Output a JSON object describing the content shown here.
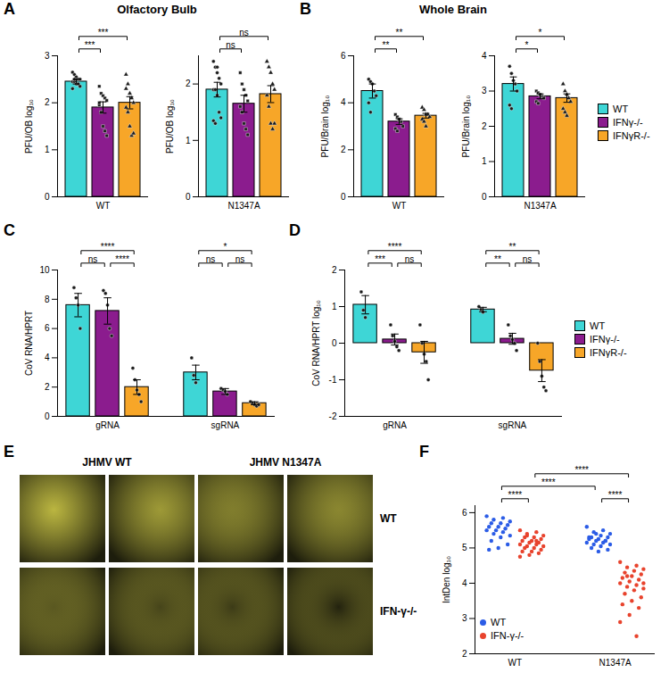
{
  "chart_data": [
    {
      "panel": "A",
      "title": "Olfactory Bulb",
      "type": "bar",
      "ylabel": "PFU/OB log₁₀",
      "ylim": [
        0,
        3
      ],
      "yticks": [
        0,
        1,
        2,
        3
      ],
      "categories": [
        "WT"
      ],
      "series": [
        {
          "name": "WT",
          "color": "#3ed6d6",
          "marker": "circle",
          "values": [
            2.45
          ],
          "errors": [
            0.05
          ],
          "points": [
            [
              2.65,
              2.6,
              2.55,
              2.5,
              2.5,
              2.45,
              2.45,
              2.4,
              2.4,
              2.35,
              2.3,
              2.5
            ]
          ]
        },
        {
          "name": "IFNγ-/-",
          "color": "#8b1c8e",
          "marker": "square",
          "values": [
            1.9
          ],
          "errors": [
            0.12
          ],
          "points": [
            [
              2.35,
              2.2,
              2.15,
              2.1,
              2.05,
              1.95,
              1.8,
              1.5,
              1.4,
              1.3,
              2.0
            ]
          ]
        },
        {
          "name": "IFNγR-/-",
          "color": "#f7a628",
          "marker": "triangle",
          "values": [
            2.0
          ],
          "errors": [
            0.13
          ],
          "points": [
            [
              2.6,
              2.4,
              2.2,
              2.1,
              2.0,
              1.9,
              1.8,
              1.5,
              1.3,
              1.35,
              2.3
            ]
          ]
        }
      ],
      "brackets": [
        {
          "from": [
            "WT",
            "WT"
          ],
          "to": [
            "WT",
            "IFNγ-/-"
          ],
          "label": "***"
        },
        {
          "from": [
            "WT",
            "WT"
          ],
          "to": [
            "WT",
            "IFNγR-/-"
          ],
          "label": "***"
        }
      ]
    },
    {
      "panel": "A",
      "type": "bar",
      "ylabel": "PFU/OB log₁₀",
      "ylim": [
        0,
        2.5
      ],
      "yticks": [
        0,
        1,
        2
      ],
      "categories": [
        "N1347A"
      ],
      "series": [
        {
          "name": "WT",
          "color": "#3ed6d6",
          "marker": "circle",
          "values": [
            1.9
          ],
          "errors": [
            0.13
          ],
          "points": [
            [
              2.4,
              2.3,
              2.2,
              2.1,
              2.0,
              1.9,
              1.9,
              1.8,
              1.5,
              1.4,
              1.35,
              1.3,
              2.3
            ]
          ]
        },
        {
          "name": "IFNγ-/-",
          "color": "#8b1c8e",
          "marker": "square",
          "values": [
            1.65
          ],
          "errors": [
            0.15
          ],
          "points": [
            [
              2.2,
              2.0,
              1.9,
              1.8,
              1.7,
              1.6,
              1.5,
              1.3,
              1.2,
              1.1
            ]
          ]
        },
        {
          "name": "IFNγR-/-",
          "color": "#f7a628",
          "marker": "triangle",
          "values": [
            1.82
          ],
          "errors": [
            0.15
          ],
          "points": [
            [
              2.4,
              2.3,
              2.2,
              2.0,
              1.9,
              1.8,
              1.6,
              1.3,
              1.2,
              1.3
            ]
          ]
        }
      ],
      "brackets": [
        {
          "from": [
            "N1347A",
            "WT"
          ],
          "to": [
            "N1347A",
            "IFNγ-/-"
          ],
          "label": "ns"
        },
        {
          "from": [
            "N1347A",
            "WT"
          ],
          "to": [
            "N1347A",
            "IFNγR-/-"
          ],
          "label": "ns"
        }
      ]
    },
    {
      "panel": "B",
      "title": "Whole Brain",
      "type": "bar",
      "ylabel": "PFU/Brain log₁₀",
      "ylim": [
        0,
        6
      ],
      "yticks": [
        0,
        2,
        4,
        6
      ],
      "categories": [
        "WT"
      ],
      "series": [
        {
          "name": "WT",
          "color": "#3ed6d6",
          "marker": "circle",
          "values": [
            4.5
          ],
          "errors": [
            0.3
          ],
          "points": [
            [
              5.0,
              4.9,
              4.8,
              4.5,
              4.3,
              4.0,
              3.6
            ]
          ]
        },
        {
          "name": "IFNγ-/-",
          "color": "#8b1c8e",
          "marker": "square",
          "values": [
            3.2
          ],
          "errors": [
            0.12
          ],
          "points": [
            [
              3.5,
              3.4,
              3.3,
              3.2,
              3.0,
              2.9,
              2.8,
              3.3
            ]
          ]
        },
        {
          "name": "IFNγR-/-",
          "color": "#f7a628",
          "marker": "triangle",
          "values": [
            3.45
          ],
          "errors": [
            0.1
          ],
          "points": [
            [
              3.8,
              3.7,
              3.5,
              3.5,
              3.4,
              3.3,
              3.2,
              3.0
            ]
          ]
        }
      ],
      "brackets": [
        {
          "from": [
            "WT",
            "WT"
          ],
          "to": [
            "WT",
            "IFNγ-/-"
          ],
          "label": "**"
        },
        {
          "from": [
            "WT",
            "WT"
          ],
          "to": [
            "WT",
            "IFNγR-/-"
          ],
          "label": "**"
        }
      ]
    },
    {
      "panel": "B",
      "type": "bar",
      "ylabel": "PFU/Brain log₁₀",
      "ylim": [
        0,
        4
      ],
      "yticks": [
        0,
        1,
        2,
        3,
        4
      ],
      "legend": "right",
      "categories": [
        "N1347A"
      ],
      "series": [
        {
          "name": "WT",
          "color": "#3ed6d6",
          "marker": "circle",
          "values": [
            3.2
          ],
          "errors": [
            0.2
          ],
          "points": [
            [
              3.7,
              3.5,
              3.3,
              3.2,
              3.0,
              2.6,
              2.5
            ]
          ]
        },
        {
          "name": "IFNγ-/-",
          "color": "#8b1c8e",
          "marker": "square",
          "values": [
            2.85
          ],
          "errors": [
            0.07
          ],
          "points": [
            [
              3.0,
              2.95,
              2.9,
              2.85,
              2.8,
              2.7,
              2.65,
              2.9
            ]
          ]
        },
        {
          "name": "IFNγR-/-",
          "color": "#f7a628",
          "marker": "triangle",
          "values": [
            2.8
          ],
          "errors": [
            0.12
          ],
          "points": [
            [
              3.2,
              3.0,
              2.9,
              2.8,
              2.7,
              2.5,
              2.4,
              2.3
            ]
          ]
        }
      ],
      "brackets": [
        {
          "from": [
            "N1347A",
            "WT"
          ],
          "to": [
            "N1347A",
            "IFNγ-/-"
          ],
          "label": "*"
        },
        {
          "from": [
            "N1347A",
            "WT"
          ],
          "to": [
            "N1347A",
            "IFNγR-/-"
          ],
          "label": "*"
        }
      ]
    },
    {
      "panel": "C",
      "type": "bar",
      "ylabel": "CoV RNA/HPRT",
      "ylim": [
        0,
        10
      ],
      "yticks": [
        0,
        2,
        4,
        6,
        8,
        10
      ],
      "categories": [
        "gRNA",
        "sgRNA"
      ],
      "series": [
        {
          "name": "WT",
          "color": "#3ed6d6",
          "marker": "circle",
          "values": [
            7.6,
            3.0
          ],
          "errors": [
            0.8,
            0.5
          ],
          "points": [
            [
              8.8,
              8.1,
              7.6,
              6.0
            ],
            [
              4.0,
              2.8,
              2.3
            ]
          ]
        },
        {
          "name": "IFNγ-/-",
          "color": "#8b1c8e",
          "marker": "circle",
          "values": [
            7.2,
            1.7
          ],
          "errors": [
            0.9,
            0.2
          ],
          "points": [
            [
              8.6,
              8.4,
              7.6,
              6.0,
              5.5
            ],
            [
              1.9,
              1.8,
              1.7,
              1.5
            ]
          ]
        },
        {
          "name": "IFNγR-/-",
          "color": "#f7a628",
          "marker": "circle",
          "values": [
            2.0,
            0.9
          ],
          "errors": [
            0.5,
            0.1
          ],
          "points": [
            [
              3.3,
              2.5,
              1.8,
              1.5,
              1.0
            ],
            [
              1.0,
              0.9,
              0.8,
              0.7,
              0.8
            ]
          ]
        }
      ],
      "brackets": [
        {
          "from": [
            "gRNA",
            "WT"
          ],
          "to": [
            "gRNA",
            "IFNγ-/-"
          ],
          "label": "ns"
        },
        {
          "from": [
            "gRNA",
            "IFNγ-/-"
          ],
          "to": [
            "gRNA",
            "IFNγR-/-"
          ],
          "label": "****"
        },
        {
          "from": [
            "gRNA",
            "WT"
          ],
          "to": [
            "gRNA",
            "IFNγR-/-"
          ],
          "label": "****"
        },
        {
          "from": [
            "sgRNA",
            "WT"
          ],
          "to": [
            "sgRNA",
            "IFNγ-/-"
          ],
          "label": "ns"
        },
        {
          "from": [
            "sgRNA",
            "IFNγ-/-"
          ],
          "to": [
            "sgRNA",
            "IFNγR-/-"
          ],
          "label": "ns"
        },
        {
          "from": [
            "sgRNA",
            "WT"
          ],
          "to": [
            "sgRNA",
            "IFNγR-/-"
          ],
          "label": "*"
        }
      ]
    },
    {
      "panel": "D",
      "type": "bar",
      "ylabel": "CoV RNA/HPRT log₁₀",
      "ylim": [
        -2,
        2
      ],
      "yticks": [
        -2,
        -1,
        0,
        1,
        2
      ],
      "legend": "right",
      "categories": [
        "gRNA",
        "sgRNA"
      ],
      "series": [
        {
          "name": "WT",
          "color": "#3ed6d6",
          "marker": "circle",
          "values": [
            1.05,
            0.92
          ],
          "errors": [
            0.25,
            0.06
          ],
          "points": [
            [
              1.4,
              0.9,
              0.7
            ],
            [
              1.0,
              0.92,
              0.85
            ]
          ]
        },
        {
          "name": "IFNγ-/-",
          "color": "#8b1c8e",
          "marker": "circle",
          "values": [
            0.1,
            0.12
          ],
          "errors": [
            0.15,
            0.15
          ],
          "points": [
            [
              0.5,
              0.2,
              0.05,
              -0.1,
              -0.2
            ],
            [
              0.5,
              0.2,
              0.1,
              0.0,
              -0.2
            ]
          ]
        },
        {
          "name": "IFNγR-/-",
          "color": "#f7a628",
          "marker": "circle",
          "values": [
            -0.25,
            -0.75
          ],
          "errors": [
            0.3,
            0.3
          ],
          "points": [
            [
              0.5,
              0.0,
              -0.3,
              -0.5,
              -1.0
            ],
            [
              0.0,
              -0.5,
              -0.9,
              -1.2,
              -1.3
            ]
          ]
        }
      ],
      "brackets": [
        {
          "from": [
            "gRNA",
            "WT"
          ],
          "to": [
            "gRNA",
            "IFNγ-/-"
          ],
          "label": "***"
        },
        {
          "from": [
            "gRNA",
            "IFNγ-/-"
          ],
          "to": [
            "gRNA",
            "IFNγR-/-"
          ],
          "label": "ns"
        },
        {
          "from": [
            "gRNA",
            "WT"
          ],
          "to": [
            "gRNA",
            "IFNγR-/-"
          ],
          "label": "****"
        },
        {
          "from": [
            "sgRNA",
            "WT"
          ],
          "to": [
            "sgRNA",
            "IFNγ-/-"
          ],
          "label": "**"
        },
        {
          "from": [
            "sgRNA",
            "IFNγ-/-"
          ],
          "to": [
            "sgRNA",
            "IFNγR-/-"
          ],
          "label": "ns"
        },
        {
          "from": [
            "sgRNA",
            "WT"
          ],
          "to": [
            "sgRNA",
            "IFNγR-/-"
          ],
          "label": "**"
        }
      ]
    },
    {
      "panel": "E",
      "type": "image_grid",
      "column_labels": [
        "JHMV WT",
        "JHMV N1347A"
      ],
      "row_labels": [
        "WT",
        "IFN-γ-/-"
      ]
    },
    {
      "panel": "F",
      "type": "scatter",
      "ylabel": "IntDen log₁₀",
      "ylim": [
        2,
        6.2
      ],
      "yticks": [
        2,
        3,
        4,
        5,
        6
      ],
      "legend": "bottom-left",
      "categories": [
        "WT",
        "N1347A"
      ],
      "series": [
        {
          "name": "WT",
          "color": "#2b5ce6",
          "marker": "circle",
          "points": [
            [
              5.9,
              5.85,
              5.8,
              5.75,
              5.7,
              5.7,
              5.65,
              5.6,
              5.6,
              5.55,
              5.5,
              5.5,
              5.45,
              5.4,
              5.35,
              5.3,
              5.2,
              5.1,
              5.0,
              4.95
            ],
            [
              5.6,
              5.5,
              5.45,
              5.4,
              5.35,
              5.3,
              5.3,
              5.25,
              5.25,
              5.2,
              5.2,
              5.15,
              5.15,
              5.1,
              5.1,
              5.05,
              5.0,
              4.95,
              4.9,
              5.3,
              5.2,
              5.4
            ]
          ]
        },
        {
          "name": "IFN-γ-/-",
          "color": "#e8432d",
          "marker": "circle",
          "points": [
            [
              5.5,
              5.45,
              5.4,
              5.35,
              5.3,
              5.3,
              5.25,
              5.2,
              5.2,
              5.15,
              5.15,
              5.1,
              5.1,
              5.05,
              5.05,
              5.0,
              5.0,
              4.95,
              4.9,
              4.9,
              4.85,
              4.8,
              4.75,
              5.2,
              5.35
            ],
            [
              4.6,
              4.5,
              4.45,
              4.4,
              4.35,
              4.3,
              4.25,
              4.2,
              4.15,
              4.1,
              4.05,
              4.0,
              3.95,
              3.9,
              3.85,
              3.8,
              3.7,
              3.6,
              3.5,
              3.4,
              3.3,
              3.1,
              2.9,
              2.5,
              4.2,
              4.0
            ]
          ]
        }
      ],
      "brackets": [
        {
          "from": [
            "WT",
            "WT"
          ],
          "to": [
            "WT",
            "IFN-γ-/-"
          ],
          "label": "****"
        },
        {
          "from": [
            "N1347A",
            "WT"
          ],
          "to": [
            "N1347A",
            "IFN-γ-/-"
          ],
          "label": "****"
        },
        {
          "from": [
            "WT",
            "WT"
          ],
          "to": [
            "N1347A",
            "WT"
          ],
          "label": "****"
        },
        {
          "from": [
            "WT",
            "IFN-γ-/-"
          ],
          "to": [
            "N1347A",
            "IFN-γ-/-"
          ],
          "label": "****"
        }
      ]
    }
  ]
}
